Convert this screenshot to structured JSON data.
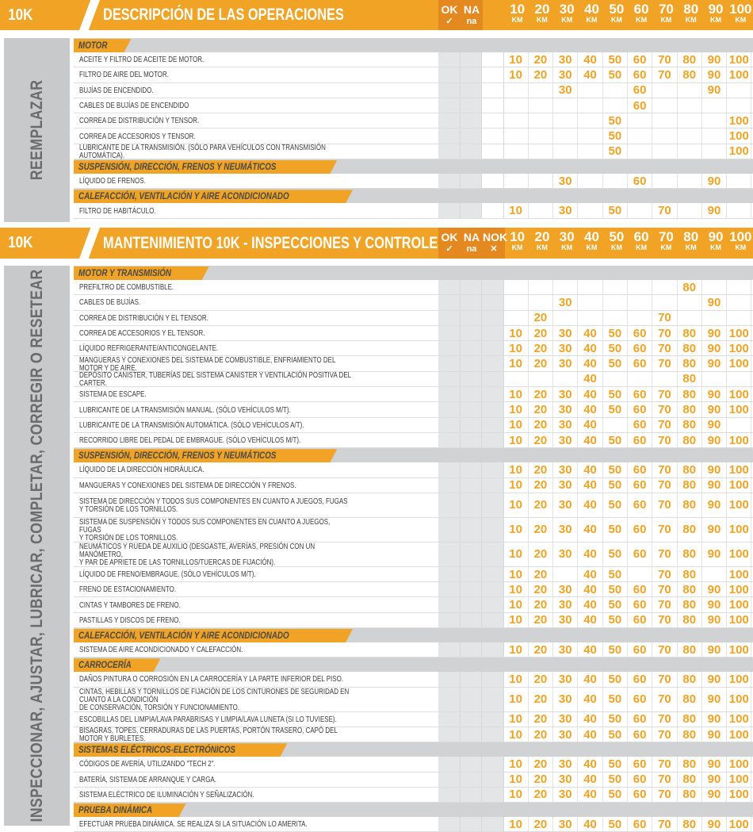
{
  "colors": {
    "accent": "#f0a324",
    "accent_dark": "#e3891f",
    "band": "#d1d2d4",
    "side": "#c8c9cb"
  },
  "km_headers": [
    {
      "n": "10",
      "u": "KM"
    },
    {
      "n": "20",
      "u": "KM"
    },
    {
      "n": "30",
      "u": "KM"
    },
    {
      "n": "40",
      "u": "KM"
    },
    {
      "n": "50",
      "u": "KM"
    },
    {
      "n": "60",
      "u": "KM"
    },
    {
      "n": "70",
      "u": "KM"
    },
    {
      "n": "80",
      "u": "KM"
    },
    {
      "n": "90",
      "u": "KM"
    },
    {
      "n": "100",
      "u": "KM"
    }
  ],
  "sections": [
    {
      "badge": "10K",
      "title": "DESCRIPCIÓN DE LAS OPERACIONES",
      "checks": [
        {
          "label": "OK",
          "sub": "✓"
        },
        {
          "label": "NA",
          "sub": "na"
        }
      ],
      "side_label": "REEMPLAZAR",
      "groups": [
        {
          "name": "MOTOR",
          "items": [
            {
              "text": "ACEITE Y  FILTRO DE ACEITE DE MOTOR.",
              "km": [
                "10",
                "20",
                "30",
                "40",
                "50",
                "60",
                "70",
                "80",
                "90",
                "100"
              ]
            },
            {
              "text": "FILTRO DE AIRE DEL MOTOR.",
              "km": [
                "10",
                "20",
                "30",
                "40",
                "50",
                "60",
                "70",
                "80",
                "90",
                "100"
              ]
            },
            {
              "text": "BUJÍAS DE ENCENDIDO.",
              "km": [
                "",
                "",
                "30",
                "",
                "",
                "60",
                "",
                "",
                "90",
                ""
              ]
            },
            {
              "text": "CABLES DE BUJÍAS DE ENCENDIDO",
              "km": [
                "",
                "",
                "",
                "",
                "",
                "60",
                "",
                "",
                "",
                ""
              ]
            },
            {
              "text": "CORREA DE DISTRIBUCIÓN Y TENSOR.",
              "km": [
                "",
                "",
                "",
                "",
                "50",
                "",
                "",
                "",
                "",
                "100"
              ]
            },
            {
              "text": "CORREA DE ACCESORIOS Y TENSOR.",
              "km": [
                "",
                "",
                "",
                "",
                "50",
                "",
                "",
                "",
                "",
                "100"
              ]
            },
            {
              "text": "LUBRICANTE DE LA TRANSMISIÓN. (SÓLO PARA VEHÍCULOS CON TRANSMISIÓN AUTOMÁTICA).",
              "km": [
                "",
                "",
                "",
                "",
                "50",
                "",
                "",
                "",
                "",
                "100"
              ]
            }
          ]
        },
        {
          "name": "SUSPENSIÓN, DIRECCIÓN, FRENOS Y NEUMÁTICOS",
          "items": [
            {
              "text": "LÍQUIDO DE FRENOS.",
              "km": [
                "",
                "",
                "30",
                "",
                "",
                "60",
                "",
                "",
                "90",
                ""
              ]
            }
          ]
        },
        {
          "name": "CALEFACCIÓN, VENTILACIÓN Y AIRE ACONDICIONADO",
          "items": [
            {
              "text": "FILTRO DE HABITÁCULO.",
              "km": [
                "10",
                "",
                "30",
                "",
                "50",
                "",
                "70",
                "",
                "90",
                ""
              ]
            }
          ]
        }
      ]
    },
    {
      "badge": "10K",
      "title": "MANTENIMIENTO 10K - INSPECCIONES Y CONTROLES",
      "checks": [
        {
          "label": "OK",
          "sub": "✓"
        },
        {
          "label": "NA",
          "sub": "na"
        },
        {
          "label": "NOK",
          "sub": "✕"
        }
      ],
      "side_label": "INSPECCIONAR, AJUSTAR, LUBRICAR, COMPLETAR, CORREGIR O RESETEAR",
      "groups": [
        {
          "name": "MOTOR Y TRANSMISIÓN",
          "items": [
            {
              "text": "PREFILTRO DE COMBUSTIBLE.",
              "km": [
                "",
                "",
                "",
                "",
                "",
                "",
                "",
                "80",
                "",
                ""
              ]
            },
            {
              "text": "CABLES DE BUJÍAS.",
              "km": [
                "",
                "",
                "30",
                "",
                "",
                "",
                "",
                "",
                "90",
                ""
              ]
            },
            {
              "text": "CORREA DE DISTRIBUCIÓN Y EL TENSOR.",
              "km": [
                "",
                "20",
                "",
                "",
                "",
                "",
                "70",
                "",
                "",
                ""
              ]
            },
            {
              "text": "CORREA DE ACCESORIOS Y EL TENSOR.",
              "km": [
                "10",
                "20",
                "30",
                "40",
                "50",
                "60",
                "70",
                "80",
                "90",
                "100"
              ]
            },
            {
              "text": "LÍQUIDO REFRIGERANTE/ANTICONGELANTE.",
              "km": [
                "10",
                "20",
                "30",
                "40",
                "50",
                "60",
                "70",
                "80",
                "90",
                "100"
              ]
            },
            {
              "text": "MANGUERAS Y CONEXIONES DEL SISTEMA DE COMBUSTIBLE, ENFRIAMIENTO DEL MOTOR Y DE AIRE.",
              "km": [
                "10",
                "20",
                "30",
                "40",
                "50",
                "60",
                "70",
                "80",
                "90",
                "100"
              ]
            },
            {
              "text": "DEPÓSITO CANISTER, TUBERÍAS DEL SISTEMA CANISTER  Y VENTILACIÓN POSITIVA DEL CARTER.",
              "km": [
                "",
                "",
                "",
                "40",
                "",
                "",
                "",
                "80",
                "",
                ""
              ]
            },
            {
              "text": "SISTEMA DE ESCAPE.",
              "km": [
                "10",
                "20",
                "30",
                "40",
                "50",
                "60",
                "70",
                "80",
                "90",
                "100"
              ]
            },
            {
              "text": "LUBRICANTE DE LA TRANSMISIÓN MANUAL. (SÓLO VEHÍCULOS M/T).",
              "km": [
                "10",
                "20",
                "30",
                "40",
                "50",
                "60",
                "70",
                "80",
                "90",
                "100"
              ]
            },
            {
              "text": "LUBRICANTE DE LA TRANSMISIÓN AUTOMÁTICA. (SÓLO VEHÍCULOS A/T).",
              "km": [
                "10",
                "20",
                "30",
                "40",
                "",
                "60",
                "70",
                "80",
                "90",
                ""
              ]
            },
            {
              "text": "RECORRIDO LIBRE DEL PEDAL DE EMBRAGUE. (SÓLO VEHÍCULOS M/T).",
              "km": [
                "10",
                "20",
                "30",
                "40",
                "50",
                "60",
                "70",
                "80",
                "90",
                "100"
              ]
            }
          ]
        },
        {
          "name": "SUSPENSIÓN, DIRECCIÓN, FRENOS Y NEUMÁTICOS",
          "items": [
            {
              "text": "LÍQUIDO DE LA DIRECCIÓN HIDRÁULICA.",
              "km": [
                "10",
                "20",
                "30",
                "40",
                "50",
                "60",
                "70",
                "80",
                "90",
                "100"
              ]
            },
            {
              "text": "MANGUERAS Y CONEXIONES DEL SISTEMA DE DIRECCIÓN Y FRENOS.",
              "km": [
                "10",
                "20",
                "30",
                "40",
                "50",
                "60",
                "70",
                "80",
                "90",
                "100"
              ]
            },
            {
              "text": "SISTEMA DE DIRECCIÓN Y TODOS SUS COMPONENTES EN CUANTO A JUEGOS, FUGAS\nY TORSIÓN DE LOS TORNILLOS.",
              "km": [
                "10",
                "20",
                "30",
                "40",
                "50",
                "60",
                "70",
                "80",
                "90",
                "100"
              ]
            },
            {
              "text": "SISTEMA DE SUSPENSIÓN Y TODOS SUS COMPONENTES EN CUANTO A JUEGOS, FUGAS\nY TORSIÓN DE LOS TORNILLOS.",
              "km": [
                "10",
                "20",
                "30",
                "40",
                "50",
                "60",
                "70",
                "80",
                "90",
                "100"
              ]
            },
            {
              "text": "NEUMÁTICOS Y RUEDA DE AUXILIO (DESGASTE, AVERÍAS, PRESIÓN CON UN MANÓMETRO,\nY PAR DE APRIETE DE LAS TORNILLOS/TUERCAS DE FIJACIÓN).",
              "km": [
                "10",
                "20",
                "30",
                "40",
                "50",
                "60",
                "70",
                "80",
                "90",
                "100"
              ]
            },
            {
              "text": "LÍQUIDO DE FRENO/EMBRAGUE. (SÓLO VEHÍCULOS M/T).",
              "km": [
                "10",
                "20",
                "",
                "40",
                "50",
                "",
                "70",
                "80",
                "",
                "100"
              ]
            },
            {
              "text": "FRENO DE ESTACIONAMIENTO.",
              "km": [
                "10",
                "20",
                "30",
                "40",
                "50",
                "60",
                "70",
                "80",
                "90",
                "100"
              ]
            },
            {
              "text": "CINTAS Y TAMBORES DE FRENO.",
              "km": [
                "10",
                "20",
                "30",
                "40",
                "50",
                "60",
                "70",
                "80",
                "90",
                "100"
              ]
            },
            {
              "text": "PASTILLAS Y DISCOS DE FRENO.",
              "km": [
                "10",
                "20",
                "30",
                "40",
                "50",
                "60",
                "70",
                "80",
                "90",
                "100"
              ]
            }
          ]
        },
        {
          "name": "CALEFACCIÓN, VENTILACIÓN Y AIRE ACONDICIONADO",
          "items": [
            {
              "text": "SISTEMA DE AIRE ACONDICIONADO Y CALEFACCIÓN.",
              "km": [
                "10",
                "20",
                "30",
                "40",
                "50",
                "60",
                "70",
                "80",
                "90",
                "100"
              ]
            }
          ]
        },
        {
          "name": "CARROCERÍA",
          "items": [
            {
              "text": "DAÑOS PINTURA O CORROSIÓN EN LA CARROCERÍA Y LA PARTE INFERIOR DEL PISO.",
              "km": [
                "10",
                "20",
                "30",
                "40",
                "50",
                "60",
                "70",
                "80",
                "90",
                "100"
              ]
            },
            {
              "text": "CINTAS, HEBILLAS Y TORNILLOS DE FIJACIÓN DE LOS CINTURONES DE SEGURIDAD EN CUANTO A LA CONDICIÓN\nDE CONSERVACIÓN, TORSIÓN Y FUNCIONAMIENTO.",
              "km": [
                "10",
                "20",
                "30",
                "40",
                "50",
                "60",
                "70",
                "80",
                "90",
                "100"
              ]
            },
            {
              "text": "ESCOBILLAS DEL LIMPIA/LAVA PARABRISAS Y LIMPIA/LAVA LUNETA (SI LO TUVIESE).",
              "km": [
                "10",
                "20",
                "30",
                "40",
                "50",
                "60",
                "70",
                "80",
                "90",
                "100"
              ]
            },
            {
              "text": "BISAGRAS, TOPES, CERRADURAS DE LAS PUERTAS, PORTÓN TRASERO, CAPÓ DEL MOTOR Y BURLETES.",
              "km": [
                "10",
                "20",
                "30",
                "40",
                "50",
                "60",
                "70",
                "80",
                "90",
                "100"
              ]
            }
          ]
        },
        {
          "name": "SISTEMAS ELÉCTRICOS-ELECTRÓNICOS",
          "items": [
            {
              "text": "CÓDIGOS DE AVERÍA, UTILIZANDO \"TECH 2\".",
              "km": [
                "10",
                "20",
                "30",
                "40",
                "50",
                "60",
                "70",
                "80",
                "90",
                "100"
              ]
            },
            {
              "text": "BATERÍA, SISTEMA DE ARRANQUE Y CARGA.",
              "km": [
                "10",
                "20",
                "30",
                "40",
                "50",
                "60",
                "70",
                "80",
                "90",
                "100"
              ]
            },
            {
              "text": "SISTEMA ELÉCTRICO DE ILUMINACIÓN Y SEÑALIZACIÓN.",
              "km": [
                "10",
                "20",
                "30",
                "40",
                "50",
                "60",
                "70",
                "80",
                "90",
                "100"
              ]
            }
          ]
        },
        {
          "name": "PRUEBA DINÁMICA",
          "items": [
            {
              "text": "EFECTUAR PRUEBA DINÁMICA. SE REALIZA SI LA SITUACIÓN LO AMERITA.",
              "km": [
                "10",
                "20",
                "30",
                "40",
                "50",
                "60",
                "70",
                "80",
                "90",
                "100"
              ]
            }
          ]
        }
      ]
    }
  ]
}
